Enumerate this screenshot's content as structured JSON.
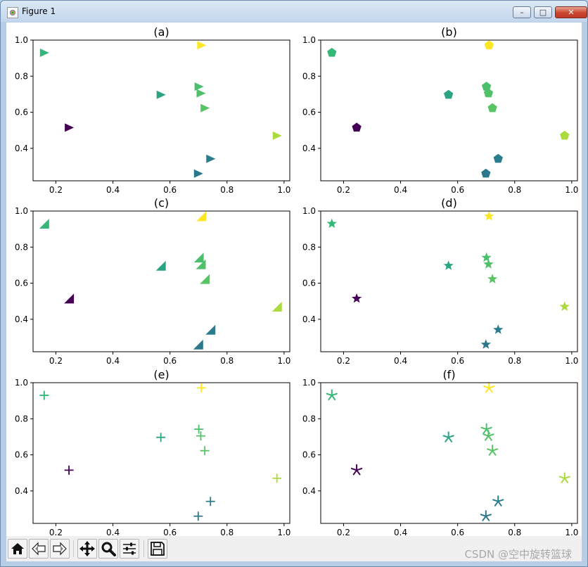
{
  "window": {
    "title": "Figure 1",
    "buttons": {
      "minimize": "–",
      "maximize": "□",
      "close": "✕"
    }
  },
  "toolbar": {
    "buttons": [
      "home-icon",
      "back-icon",
      "forward-icon",
      "pan-icon",
      "zoom-icon",
      "configure-subplots-icon",
      "save-icon"
    ]
  },
  "watermark": "CSDN @空中旋转篮球",
  "colormap": [
    "#440154",
    "#31688e",
    "#21918c",
    "#35b779",
    "#90d743",
    "#fde725"
  ],
  "chart_data": [
    {
      "type": "scatter",
      "title": "(a)",
      "marker": "triangle-right",
      "xlim": [
        0.12,
        1.02
      ],
      "ylim": [
        0.22,
        1.0
      ],
      "xticks": [
        "0.2",
        "0.4",
        "0.6",
        "0.8",
        "1.0"
      ],
      "yticks": [
        "0.4",
        "0.6",
        "0.8",
        "1.0"
      ],
      "x": [
        0.246,
        0.159,
        0.568,
        0.701,
        0.708,
        0.722,
        0.742,
        0.975,
        0.699,
        0.71
      ],
      "y": [
        0.515,
        0.93,
        0.697,
        0.742,
        0.705,
        0.623,
        0.342,
        0.47,
        0.26,
        0.971
      ],
      "c": [
        0.0,
        0.6,
        0.5,
        0.65,
        0.66,
        0.68,
        0.3,
        0.85,
        0.28,
        1.0
      ]
    },
    {
      "type": "scatter",
      "title": "(b)",
      "marker": "pentagon",
      "xlim": [
        0.12,
        1.02
      ],
      "ylim": [
        0.22,
        1.0
      ],
      "xticks": [
        "0.2",
        "0.4",
        "0.6",
        "0.8",
        "1.0"
      ],
      "yticks": [
        "0.4",
        "0.6",
        "0.8",
        "1.0"
      ],
      "x": [
        0.246,
        0.159,
        0.568,
        0.701,
        0.708,
        0.722,
        0.742,
        0.975,
        0.699,
        0.71
      ],
      "y": [
        0.515,
        0.93,
        0.697,
        0.742,
        0.705,
        0.623,
        0.342,
        0.47,
        0.26,
        0.971
      ],
      "c": [
        0.0,
        0.6,
        0.5,
        0.65,
        0.66,
        0.68,
        0.3,
        0.85,
        0.28,
        1.0
      ]
    },
    {
      "type": "scatter",
      "title": "(c)",
      "marker": "triangle-lower-right",
      "xlim": [
        0.12,
        1.02
      ],
      "ylim": [
        0.22,
        1.0
      ],
      "xticks": [
        "0.2",
        "0.4",
        "0.6",
        "0.8",
        "1.0"
      ],
      "yticks": [
        "0.4",
        "0.6",
        "0.8",
        "1.0"
      ],
      "x": [
        0.246,
        0.159,
        0.568,
        0.701,
        0.708,
        0.722,
        0.742,
        0.975,
        0.699,
        0.71
      ],
      "y": [
        0.515,
        0.93,
        0.697,
        0.742,
        0.705,
        0.623,
        0.342,
        0.47,
        0.26,
        0.971
      ],
      "c": [
        0.0,
        0.6,
        0.5,
        0.65,
        0.66,
        0.68,
        0.3,
        0.85,
        0.28,
        1.0
      ]
    },
    {
      "type": "scatter",
      "title": "(d)",
      "marker": "star",
      "xlim": [
        0.12,
        1.02
      ],
      "ylim": [
        0.22,
        1.0
      ],
      "xticks": [
        "0.2",
        "0.4",
        "0.6",
        "0.8",
        "1.0"
      ],
      "yticks": [
        "0.4",
        "0.6",
        "0.8",
        "1.0"
      ],
      "x": [
        0.246,
        0.159,
        0.568,
        0.701,
        0.708,
        0.722,
        0.742,
        0.975,
        0.699,
        0.71
      ],
      "y": [
        0.515,
        0.93,
        0.697,
        0.742,
        0.705,
        0.623,
        0.342,
        0.47,
        0.26,
        0.971
      ],
      "c": [
        0.0,
        0.6,
        0.5,
        0.65,
        0.66,
        0.68,
        0.3,
        0.85,
        0.28,
        1.0
      ]
    },
    {
      "type": "scatter",
      "title": "(e)",
      "marker": "plus",
      "xlim": [
        0.12,
        1.02
      ],
      "ylim": [
        0.22,
        1.0
      ],
      "xticks": [
        "0.2",
        "0.4",
        "0.6",
        "0.8",
        "1.0"
      ],
      "yticks": [
        "0.4",
        "0.6",
        "0.8",
        "1.0"
      ],
      "x": [
        0.246,
        0.159,
        0.568,
        0.701,
        0.708,
        0.722,
        0.742,
        0.975,
        0.699,
        0.71
      ],
      "y": [
        0.515,
        0.93,
        0.697,
        0.742,
        0.705,
        0.623,
        0.342,
        0.47,
        0.26,
        0.971
      ],
      "c": [
        0.0,
        0.6,
        0.5,
        0.65,
        0.66,
        0.68,
        0.3,
        0.85,
        0.28,
        1.0
      ]
    },
    {
      "type": "scatter",
      "title": "(f)",
      "marker": "asterisk",
      "xlim": [
        0.12,
        1.02
      ],
      "ylim": [
        0.22,
        1.0
      ],
      "xticks": [
        "0.2",
        "0.4",
        "0.6",
        "0.8",
        "1.0"
      ],
      "yticks": [
        "0.4",
        "0.6",
        "0.8",
        "1.0"
      ],
      "x": [
        0.246,
        0.159,
        0.568,
        0.701,
        0.708,
        0.722,
        0.742,
        0.975,
        0.699,
        0.71
      ],
      "y": [
        0.515,
        0.93,
        0.697,
        0.742,
        0.705,
        0.623,
        0.342,
        0.47,
        0.26,
        0.971
      ],
      "c": [
        0.0,
        0.6,
        0.5,
        0.65,
        0.66,
        0.68,
        0.3,
        0.85,
        0.28,
        1.0
      ]
    }
  ]
}
